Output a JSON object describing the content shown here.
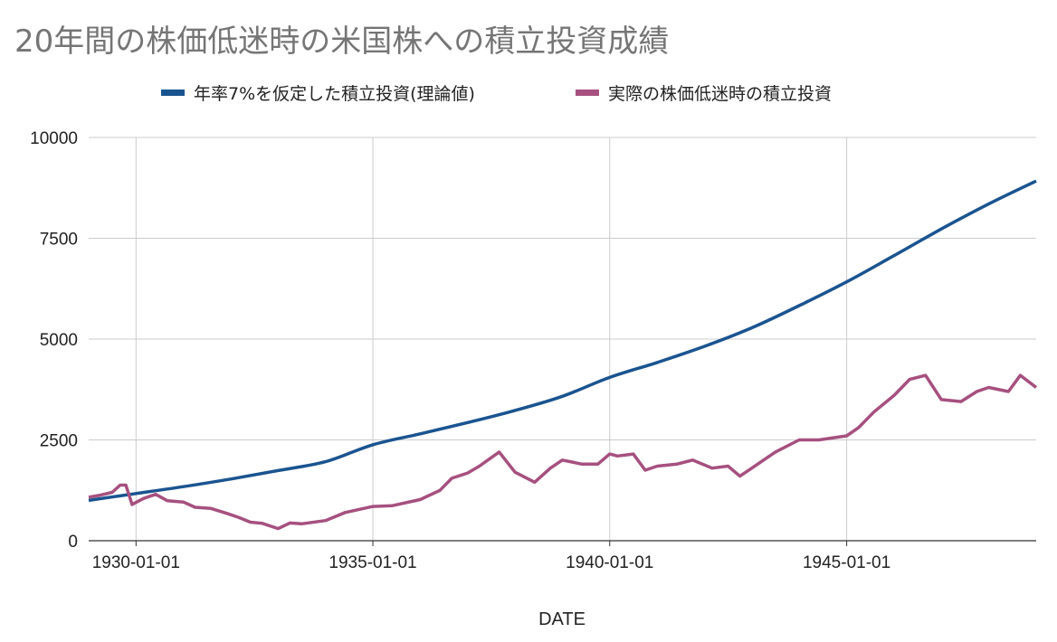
{
  "chart_data": {
    "type": "line",
    "title": "20年間の株価低迷時の米国株への積立投資成績",
    "xlabel": "DATE",
    "ylabel": "",
    "ylim": [
      0,
      10000
    ],
    "y_ticks": [
      "0",
      "2500",
      "5000",
      "7500",
      "10000"
    ],
    "xlim": [
      "1929-01-01",
      "1949-01-01"
    ],
    "x_ticks": [
      {
        "date": "1930-01-01",
        "label": "1930-01-01"
      },
      {
        "date": "1935-01-01",
        "label": "1935-01-01"
      },
      {
        "date": "1940-01-01",
        "label": "1940-01-01"
      },
      {
        "date": "1945-01-01",
        "label": "1945-01-01"
      }
    ],
    "grid": true,
    "legend_position": "top",
    "series": [
      {
        "name": "年率7%を仮定した積立投資(理論値)",
        "color": "#1a5490",
        "x": [
          "1929-01-01",
          "1930-01-01",
          "1931-01-01",
          "1932-01-01",
          "1933-01-01",
          "1934-01-01",
          "1935-01-01",
          "1936-01-01",
          "1937-01-01",
          "1938-01-01",
          "1939-01-01",
          "1940-01-01",
          "1941-01-01",
          "1942-01-01",
          "1943-01-01",
          "1944-01-01",
          "1945-01-01",
          "1946-01-01",
          "1947-01-01",
          "1948-01-01",
          "1949-01-01"
        ],
        "values": [
          1000,
          1170,
          1340,
          1530,
          1740,
          1960,
          2380,
          2650,
          2930,
          3230,
          3580,
          4050,
          4420,
          4820,
          5280,
          5830,
          6420,
          7070,
          7730,
          8350,
          8920
        ]
      },
      {
        "name": "実際の株価低迷時の積立投資",
        "color": "#a6507f",
        "x": [
          "1929-01-01",
          "1929-04-01",
          "1929-07-01",
          "1929-09-01",
          "1929-10-15",
          "1929-12-01",
          "1930-03-01",
          "1930-06-01",
          "1930-09-01",
          "1931-01-01",
          "1931-04-01",
          "1931-08-01",
          "1931-12-01",
          "1932-03-01",
          "1932-06-01",
          "1932-09-01",
          "1933-01-01",
          "1933-04-01",
          "1933-07-01",
          "1934-01-01",
          "1934-06-01",
          "1935-01-01",
          "1935-06-01",
          "1936-01-01",
          "1936-06-01",
          "1936-09-01",
          "1937-01-01",
          "1937-04-01",
          "1937-09-01",
          "1938-01-01",
          "1938-06-01",
          "1938-10-01",
          "1939-01-01",
          "1939-06-01",
          "1939-10-01",
          "1940-01-01",
          "1940-03-01",
          "1940-07-01",
          "1940-10-01",
          "1941-01-01",
          "1941-06-01",
          "1941-10-01",
          "1942-03-01",
          "1942-07-01",
          "1942-10-01",
          "1943-01-01",
          "1943-07-01",
          "1944-01-01",
          "1944-06-01",
          "1945-01-01",
          "1945-04-01",
          "1945-08-01",
          "1946-01-01",
          "1946-05-01",
          "1946-09-01",
          "1947-01-01",
          "1947-06-01",
          "1947-10-01",
          "1948-01-01",
          "1948-06-01",
          "1948-09-01",
          "1949-01-01"
        ],
        "values": [
          1080,
          1130,
          1200,
          1380,
          1380,
          900,
          1050,
          1150,
          990,
          960,
          830,
          800,
          680,
          580,
          460,
          430,
          300,
          440,
          420,
          500,
          700,
          850,
          870,
          1020,
          1250,
          1550,
          1680,
          1850,
          2200,
          1700,
          1450,
          1800,
          2000,
          1900,
          1900,
          2150,
          2100,
          2150,
          1750,
          1850,
          1900,
          2000,
          1800,
          1850,
          1600,
          1800,
          2200,
          2500,
          2500,
          2600,
          2800,
          3200,
          3600,
          4000,
          4100,
          3500,
          3450,
          3700,
          3800,
          3700,
          4100,
          3800
        ]
      }
    ]
  }
}
